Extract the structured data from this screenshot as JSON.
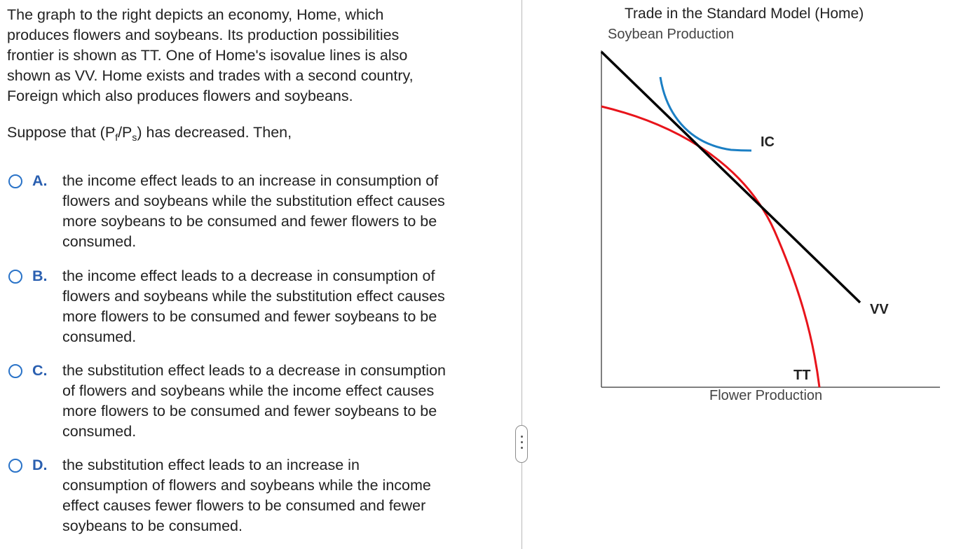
{
  "question": {
    "prompt_lines": [
      "The graph to the right depicts an economy, Home, which",
      "produces flowers and soybeans. Its production possibilities",
      "frontier is shown as TT. One of Home's isovalue lines is also",
      "shown as VV. Home exists and trades with a second country,",
      "Foreign which also produces flowers and soybeans."
    ],
    "suppose_prefix": "Suppose that (P",
    "suppose_sub_f": "f",
    "suppose_slash": "/P",
    "suppose_sub_s": "s",
    "suppose_suffix": ") has decreased. Then,",
    "options": [
      {
        "letter": "A.",
        "lines": [
          "the income effect leads to an increase in consumption of",
          "flowers and soybeans while the substitution effect causes",
          "more soybeans to be consumed and fewer flowers to be",
          "consumed."
        ]
      },
      {
        "letter": "B.",
        "lines": [
          "the income effect leads to a decrease in consumption of",
          "flowers and soybeans while the substitution effect causes",
          "more flowers to be consumed and fewer soybeans to be",
          "consumed."
        ]
      },
      {
        "letter": "C.",
        "lines": [
          "the substitution effect leads to a decrease in consumption",
          "of flowers and soybeans while the income effect causes",
          "more flowers to be consumed and fewer soybeans to be",
          "consumed."
        ]
      },
      {
        "letter": "D.",
        "lines": [
          "the substitution effect leads to an increase in",
          "consumption of flowers and soybeans while the income",
          "effect causes fewer flowers to be consumed and fewer",
          "soybeans to be consumed."
        ]
      }
    ]
  },
  "graph": {
    "title": "Trade in the Standard Model (Home)",
    "y_axis_label": "Soybean Production",
    "x_axis_label": "Flower Production",
    "curve_labels": {
      "ic": "IC",
      "vv": "VV",
      "tt": "TT"
    },
    "colors": {
      "tt_curve": "#e8141b",
      "vv_line": "#000000",
      "ic_curve": "#1b7fc4",
      "axes": "#555555",
      "radio": "#2a73c8",
      "option_letter": "#2a5fb0"
    }
  },
  "icons": {
    "radio": "radio-unselected-icon",
    "splitter": "drag-handle-dots-icon"
  }
}
